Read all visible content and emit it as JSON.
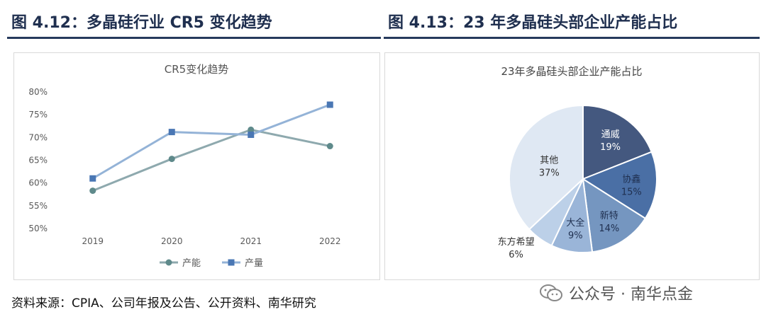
{
  "left_figure": {
    "heading": "图 4.12：多晶硅行业 CR5 变化趋势"
  },
  "right_figure": {
    "heading": "图 4.13：23 年多晶硅头部企业产能占比"
  },
  "source": "资料来源：CPIA、公司年报及公告、公开资料、南华研究",
  "watermark": "公众号 · 南华点金",
  "chart_data": [
    {
      "type": "line",
      "title": "CR5变化趋势",
      "x": [
        "2019",
        "2020",
        "2021",
        "2022"
      ],
      "y_ticks": [
        "50%",
        "55%",
        "60%",
        "65%",
        "70%",
        "75%",
        "80%"
      ],
      "ylim": [
        50,
        80
      ],
      "grid": false,
      "legend": "bottom",
      "series": [
        {
          "name": "产能",
          "values": [
            58.3,
            65.3,
            71.7,
            68.1
          ],
          "color": "#8ea9ae",
          "marker": "circle",
          "marker_color": "#5f8a8b"
        },
        {
          "name": "产量",
          "values": [
            61.0,
            71.2,
            70.6,
            77.2
          ],
          "color": "#94b3d7",
          "marker": "square",
          "marker_color": "#4a77b4"
        }
      ]
    },
    {
      "type": "pie",
      "title": "23年多晶硅头部企业产能占比",
      "slices": [
        {
          "label": "通威",
          "value": 19,
          "display": "19%",
          "color": "#44587f",
          "text_color": "#ffffff"
        },
        {
          "label": "协鑫",
          "value": 15,
          "display": "15%",
          "color": "#4a6fa5",
          "text_color": "#1f2f4f"
        },
        {
          "label": "新特",
          "value": 14,
          "display": "14%",
          "color": "#7596c0",
          "text_color": "#1f2f4f"
        },
        {
          "label": "大全",
          "value": 9,
          "display": "9%",
          "color": "#9ab5d8",
          "text_color": "#1f2f4f"
        },
        {
          "label": "东方希望",
          "value": 6,
          "display": "6%",
          "color": "#bcd0e8",
          "text_color": "#333333"
        },
        {
          "label": "其他",
          "value": 37,
          "display": "37%",
          "color": "#dfe8f3",
          "text_color": "#333333"
        }
      ]
    }
  ]
}
